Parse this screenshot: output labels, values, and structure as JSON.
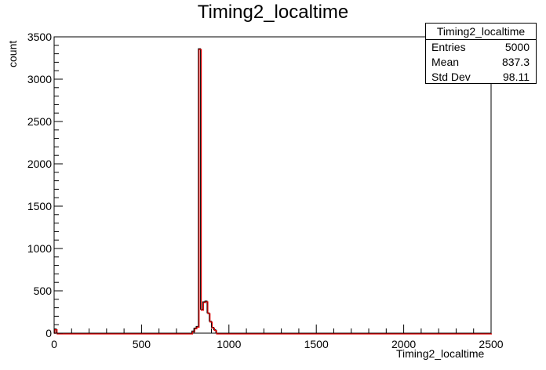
{
  "chart_data": {
    "type": "bar",
    "title": "Timing2_localtime",
    "xlabel": "Timing2_localtime",
    "ylabel": "count",
    "xlim": [
      0,
      2500
    ],
    "ylim": [
      0,
      3500
    ],
    "bin_width": 12.5,
    "x_ticks": [
      0,
      500,
      1000,
      1500,
      2000,
      2500
    ],
    "y_ticks": [
      0,
      500,
      1000,
      1500,
      2000,
      2500,
      3000,
      3500
    ],
    "series": [
      {
        "values": [
          {
            "x": 0,
            "y": 50
          },
          {
            "x": 787.5,
            "y": 25
          },
          {
            "x": 800,
            "y": 60
          },
          {
            "x": 812.5,
            "y": 80
          },
          {
            "x": 825,
            "y": 3360
          },
          {
            "x": 837.5,
            "y": 280
          },
          {
            "x": 850,
            "y": 370
          },
          {
            "x": 862.5,
            "y": 380
          },
          {
            "x": 875,
            "y": 240
          },
          {
            "x": 887.5,
            "y": 140
          },
          {
            "x": 900,
            "y": 70
          },
          {
            "x": 912.5,
            "y": 40
          }
        ]
      }
    ],
    "stats": {
      "name": "Timing2_localtime",
      "entries_label": "Entries",
      "entries": "5000",
      "mean_label": "Mean",
      "mean": "837.3",
      "stddev_label": "Std Dev",
      "stddev": "98.11"
    }
  }
}
